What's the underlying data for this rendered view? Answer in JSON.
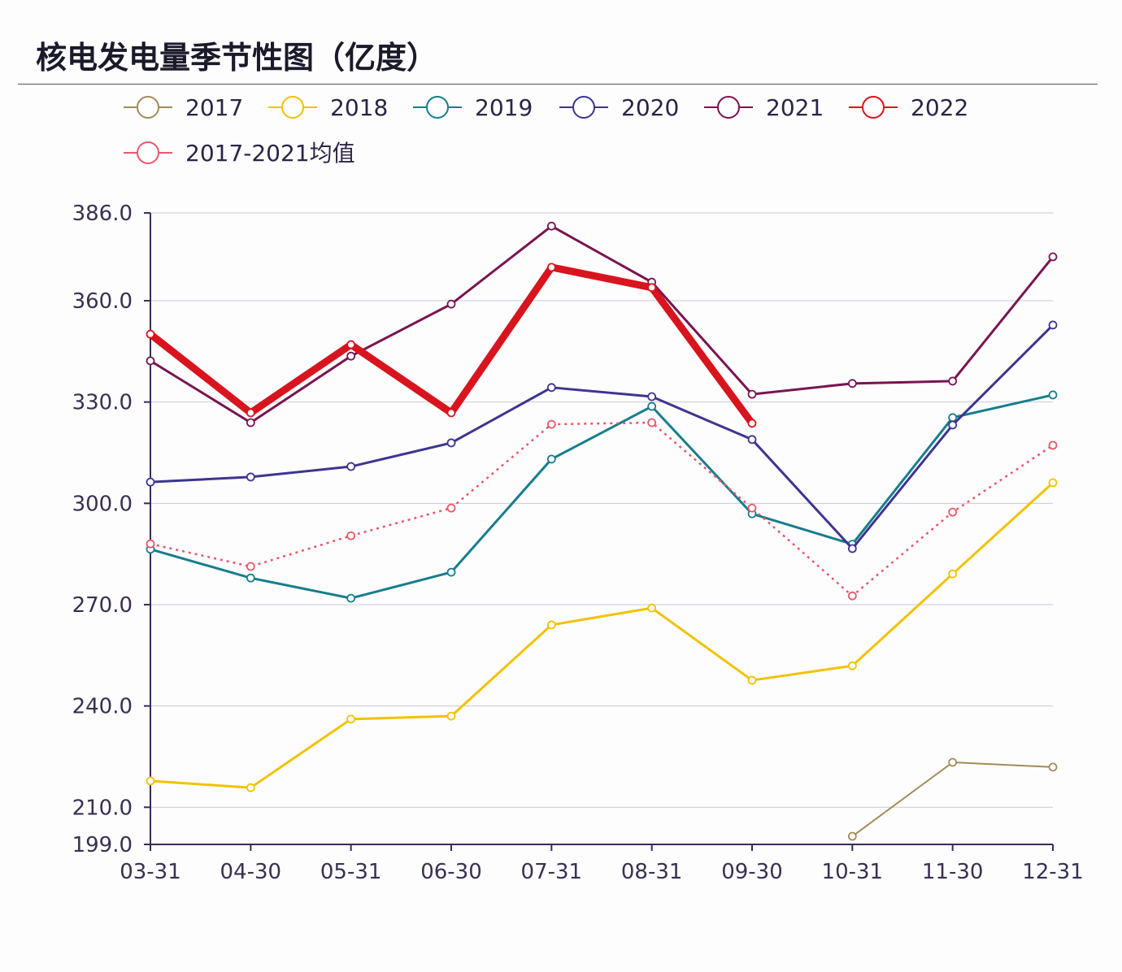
{
  "title": "核电发电量季节性图（亿度）",
  "chart_data": {
    "type": "line",
    "title": "核电发电量季节性图（亿度）",
    "xlabel": "",
    "ylabel": "",
    "categories": [
      "03-31",
      "04-30",
      "05-31",
      "06-30",
      "07-31",
      "08-31",
      "09-30",
      "10-31",
      "11-30",
      "12-31"
    ],
    "ylim": [
      199.0,
      386.0
    ],
    "yticks": [
      "199.0",
      "210.0",
      "240.0",
      "270.0",
      "300.0",
      "330.0",
      "360.0",
      "386.0"
    ],
    "grid": true,
    "legend_position": "top-left",
    "series": [
      {
        "name": "2017",
        "color": "#a08c5a",
        "width": 2,
        "dashed": false,
        "values": [
          null,
          null,
          null,
          null,
          null,
          null,
          null,
          201.4,
          223.3,
          221.9
        ]
      },
      {
        "name": "2018",
        "color": "#f2c200",
        "width": 3,
        "dashed": false,
        "values": [
          217.8,
          215.8,
          236.1,
          237.0,
          264.0,
          269.0,
          247.6,
          251.9,
          279.1,
          306.1
        ]
      },
      {
        "name": "2019",
        "color": "#177d8c",
        "width": 3,
        "dashed": false,
        "values": [
          286.4,
          277.9,
          271.9,
          279.6,
          313.1,
          328.7,
          296.9,
          287.9,
          325.4,
          332.1
        ]
      },
      {
        "name": "2020",
        "color": "#3d3590",
        "width": 3,
        "dashed": false,
        "values": [
          306.3,
          307.8,
          310.9,
          317.9,
          334.3,
          331.6,
          318.9,
          286.6,
          323.2,
          352.8
        ]
      },
      {
        "name": "2021",
        "color": "#7a1450",
        "width": 3,
        "dashed": false,
        "values": [
          342.2,
          323.9,
          343.6,
          359.0,
          382.1,
          365.5,
          332.3,
          335.5,
          336.2,
          373.0
        ]
      },
      {
        "name": "2022",
        "color": "#d8141e",
        "width": 9,
        "dashed": false,
        "values": [
          350.1,
          326.8,
          347.0,
          326.8,
          369.9,
          363.9,
          323.7,
          null,
          null,
          null
        ]
      },
      {
        "name": "2017-2021均值",
        "color": "#e8586a",
        "width": 2.5,
        "dashed": true,
        "values": [
          288.0,
          281.3,
          290.4,
          298.6,
          323.4,
          323.9,
          298.6,
          272.6,
          297.4,
          317.2
        ]
      }
    ]
  }
}
